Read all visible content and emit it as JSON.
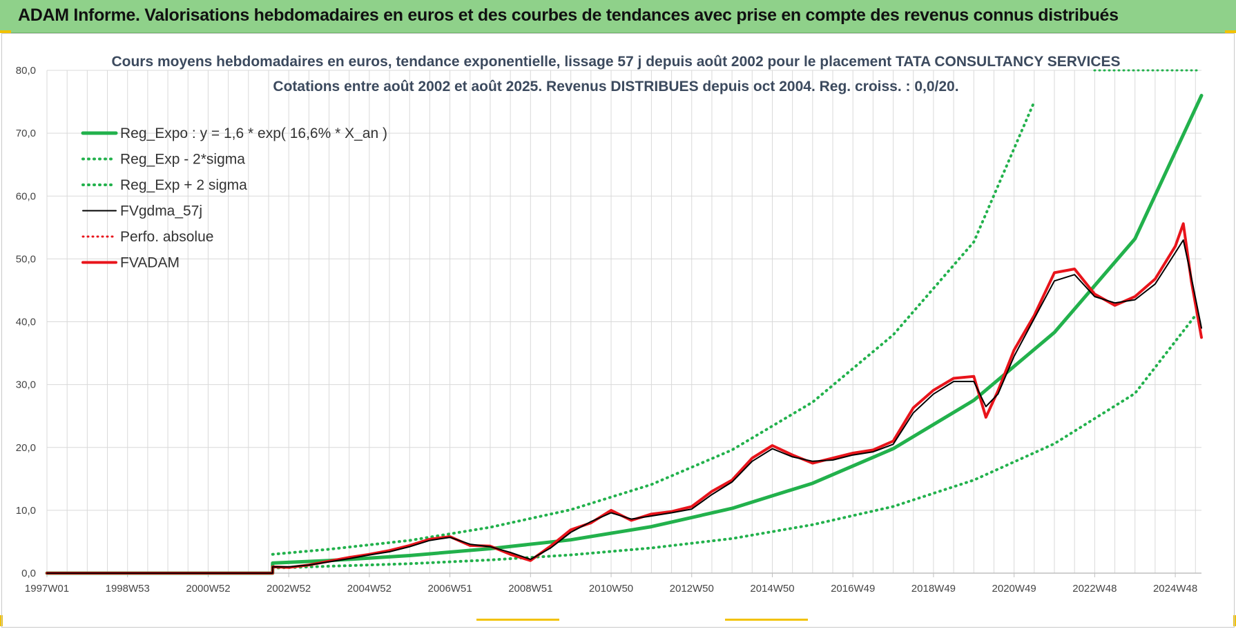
{
  "banner": {
    "title": "ADAM Informe. Valorisations hebdomadaires en euros et des courbes de tendances avec prise en compte des revenus connus distribués"
  },
  "colors": {
    "banner_bg": "#8fd18a",
    "green": "#22b14c",
    "red": "#e8141b",
    "black": "#000000",
    "grid": "#d9d9d9",
    "title": "#3c4a5e"
  },
  "chart_data": {
    "type": "line",
    "title": "Cours moyens hebdomadaires en euros, tendance exponentielle, lissage 57 j depuis août 2002 pour le placement TATA CONSULTANCY SERVICES",
    "subtitle": "Cotations entre août 2002 et août 2025. Revenus DISTRIBUES depuis oct 2004. Reg. croiss. : 0,0/20.",
    "xlabel": "",
    "ylabel": "",
    "ylim": [
      0,
      80
    ],
    "xlim": [
      1997.0,
      2025.65
    ],
    "grid": true,
    "legend_position": "top-left",
    "x_ticks": [
      {
        "x": 1997.0,
        "label": "1997W01"
      },
      {
        "x": 1999.0,
        "label": "1998W53"
      },
      {
        "x": 2001.0,
        "label": "2000W52"
      },
      {
        "x": 2003.0,
        "label": "2002W52"
      },
      {
        "x": 2005.0,
        "label": "2004W52"
      },
      {
        "x": 2007.0,
        "label": "2006W51"
      },
      {
        "x": 2009.0,
        "label": "2008W51"
      },
      {
        "x": 2011.0,
        "label": "2010W50"
      },
      {
        "x": 2013.0,
        "label": "2012W50"
      },
      {
        "x": 2015.0,
        "label": "2014W50"
      },
      {
        "x": 2017.0,
        "label": "2016W49"
      },
      {
        "x": 2019.0,
        "label": "2018W49"
      },
      {
        "x": 2021.0,
        "label": "2020W49"
      },
      {
        "x": 2023.0,
        "label": "2022W48"
      },
      {
        "x": 2025.0,
        "label": "2024W48"
      }
    ],
    "y_ticks": [
      {
        "y": 0,
        "label": "0,0"
      },
      {
        "y": 10,
        "label": "10,0"
      },
      {
        "y": 20,
        "label": "20,0"
      },
      {
        "y": 30,
        "label": "30,0"
      },
      {
        "y": 40,
        "label": "40,0"
      },
      {
        "y": 50,
        "label": "50,0"
      },
      {
        "y": 60,
        "label": "60,0"
      },
      {
        "y": 70,
        "label": "70,0"
      },
      {
        "y": 80,
        "label": "80,0"
      }
    ],
    "series": [
      {
        "name": "Reg_Expo : y = 1,6 * exp( 16,6% *  X_an )",
        "style": "solid-green",
        "x": [
          1997.0,
          2002.6,
          2002.6,
          2004,
          2006,
          2008,
          2010,
          2012,
          2014,
          2016,
          2018,
          2020,
          2022,
          2024,
          2025.65
        ],
        "y": [
          0,
          0,
          1.6,
          2.0,
          2.8,
          3.9,
          5.3,
          7.4,
          10.3,
          14.3,
          19.8,
          27.5,
          38.3,
          53.2,
          76
        ]
      },
      {
        "name": "Reg_Exp - 2*sigma",
        "style": "dotted-green",
        "x": [
          2002.6,
          2004,
          2006,
          2008,
          2010,
          2012,
          2014,
          2016,
          2018,
          2020,
          2022,
          2024,
          2025.5
        ],
        "y": [
          0.8,
          1.1,
          1.5,
          2.1,
          2.9,
          4.0,
          5.5,
          7.7,
          10.6,
          14.8,
          20.6,
          28.6,
          41
        ]
      },
      {
        "name": "Reg_Exp + 2 sigma",
        "style": "dotted-green",
        "x": [
          2002.6,
          2004,
          2006,
          2008,
          2010,
          2012,
          2014,
          2016,
          2018,
          2020,
          2021.5
        ],
        "y": [
          3.0,
          3.8,
          5.2,
          7.3,
          10.1,
          14.1,
          19.6,
          27.2,
          37.9,
          52.7,
          75
        ]
      },
      {
        "name": "FVgdma_57j",
        "style": "solid-black",
        "x": [
          1997.0,
          2002.6,
          2002.6,
          2003.0,
          2003.5,
          2004.0,
          2004.5,
          2005.0,
          2005.5,
          2006.0,
          2006.5,
          2007.0,
          2007.5,
          2008.0,
          2008.5,
          2009.0,
          2009.5,
          2010.0,
          2010.5,
          2011.0,
          2011.5,
          2012.0,
          2012.5,
          2013.0,
          2013.5,
          2014.0,
          2014.5,
          2015.0,
          2015.5,
          2016.0,
          2016.5,
          2017.0,
          2017.5,
          2018.0,
          2018.5,
          2019.0,
          2019.5,
          2020.0,
          2020.3,
          2020.6,
          2021.0,
          2021.5,
          2022.0,
          2022.5,
          2023.0,
          2023.5,
          2024.0,
          2024.5,
          2025.0,
          2025.2,
          2025.4,
          2025.65
        ],
        "y": [
          0,
          0,
          1.0,
          1.0,
          1.3,
          1.8,
          2.3,
          2.9,
          3.4,
          4.2,
          5.2,
          5.7,
          4.6,
          4.2,
          3.3,
          2.2,
          4.0,
          6.5,
          8.2,
          9.6,
          8.6,
          9.1,
          9.6,
          10.2,
          12.5,
          14.5,
          17.8,
          19.8,
          18.5,
          17.8,
          18.0,
          18.8,
          19.3,
          20.5,
          25.5,
          28.5,
          30.5,
          30.5,
          26.5,
          28.5,
          34.5,
          40.5,
          46.5,
          47.5,
          44.0,
          43.0,
          43.5,
          46.0,
          51.0,
          53.0,
          47.0,
          39.0
        ]
      },
      {
        "name": "Perfo. absolue",
        "style": "dotted-red",
        "x": [],
        "y": []
      },
      {
        "name": "FVADAM",
        "style": "solid-red",
        "x": [
          1997.0,
          2002.6,
          2002.6,
          2003.0,
          2003.5,
          2004.0,
          2004.5,
          2005.0,
          2005.5,
          2006.0,
          2006.5,
          2007.0,
          2007.5,
          2008.0,
          2008.5,
          2009.0,
          2009.5,
          2010.0,
          2010.5,
          2011.0,
          2011.5,
          2012.0,
          2012.5,
          2013.0,
          2013.5,
          2014.0,
          2014.5,
          2015.0,
          2015.5,
          2016.0,
          2016.5,
          2017.0,
          2017.5,
          2018.0,
          2018.5,
          2019.0,
          2019.5,
          2020.0,
          2020.3,
          2020.6,
          2021.0,
          2021.5,
          2022.0,
          2022.5,
          2023.0,
          2023.5,
          2024.0,
          2024.5,
          2025.0,
          2025.2,
          2025.4,
          2025.65
        ],
        "y": [
          0,
          0,
          1.0,
          0.9,
          1.3,
          1.9,
          2.5,
          3.0,
          3.6,
          4.4,
          5.4,
          5.8,
          4.4,
          4.3,
          3.0,
          2.0,
          4.3,
          6.9,
          8.0,
          10.0,
          8.4,
          9.4,
          9.8,
          10.6,
          13.0,
          14.8,
          18.3,
          20.3,
          18.8,
          17.5,
          18.3,
          19.1,
          19.6,
          21.0,
          26.3,
          29.1,
          31.0,
          31.3,
          24.8,
          29.0,
          35.5,
          41.0,
          47.8,
          48.4,
          44.4,
          42.6,
          44.0,
          46.8,
          52.0,
          55.6,
          46.4,
          37.5
        ]
      }
    ]
  }
}
